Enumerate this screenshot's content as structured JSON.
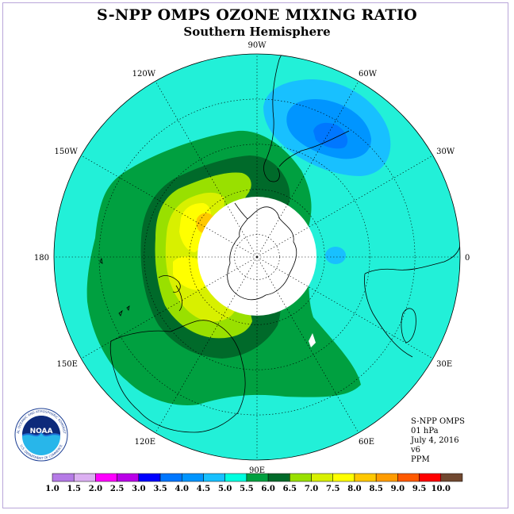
{
  "header": {
    "title": "S-NPP OMPS OZONE MIXING RATIO",
    "subtitle": "Southern Hemisphere"
  },
  "map": {
    "projection": "south-polar-stereographic",
    "longitude_labels": [
      {
        "text": "90W",
        "lon": -90
      },
      {
        "text": "60W",
        "lon": -60
      },
      {
        "text": "30W",
        "lon": -30
      },
      {
        "text": "0",
        "lon": 0
      },
      {
        "text": "30E",
        "lon": 30
      },
      {
        "text": "60E",
        "lon": 60
      },
      {
        "text": "90E",
        "lon": 90
      },
      {
        "text": "120E",
        "lon": 120
      },
      {
        "text": "150E",
        "lon": 150
      },
      {
        "text": "180",
        "lon": 180
      },
      {
        "text": "150W",
        "lon": -150
      },
      {
        "text": "120W",
        "lon": -120
      }
    ],
    "latitude_circles": [
      -80,
      -60,
      -40,
      -20
    ],
    "data_gap": "polar night (no data)"
  },
  "info": {
    "instrument": "S-NPP OMPS",
    "level": "01 hPa",
    "date": "July 4, 2016",
    "version": "v6",
    "units": "PPM"
  },
  "colorbar": {
    "labels": [
      "1.0",
      "1.5",
      "2.0",
      "2.5",
      "3.0",
      "3.5",
      "4.0",
      "4.5",
      "5.0",
      "5.5",
      "6.0",
      "6.5",
      "7.0",
      "7.5",
      "8.0",
      "8.5",
      "9.0",
      "9.5",
      "10.0"
    ],
    "colors": [
      "#b57be6",
      "#dcb0f2",
      "#ff00ff",
      "#ba00e8",
      "#0000ff",
      "#0077ff",
      "#0095ff",
      "#18c0ff",
      "#00ffe0",
      "#00a040",
      "#006a2a",
      "#99e000",
      "#d8f000",
      "#ffff00",
      "#ffc800",
      "#ff9c00",
      "#ff5a00",
      "#ff0000",
      "#704830"
    ]
  },
  "colors": {
    "background_field": "#22f0d8",
    "coast": "#000000",
    "gridline": "#000000"
  },
  "logo": {
    "text": "NOAA",
    "ring_text": "NATIONAL OCEANIC AND ATMOSPHERIC ADMINISTRATION",
    "ring_text_bottom": "U.S. DEPARTMENT OF COMMERCE"
  }
}
